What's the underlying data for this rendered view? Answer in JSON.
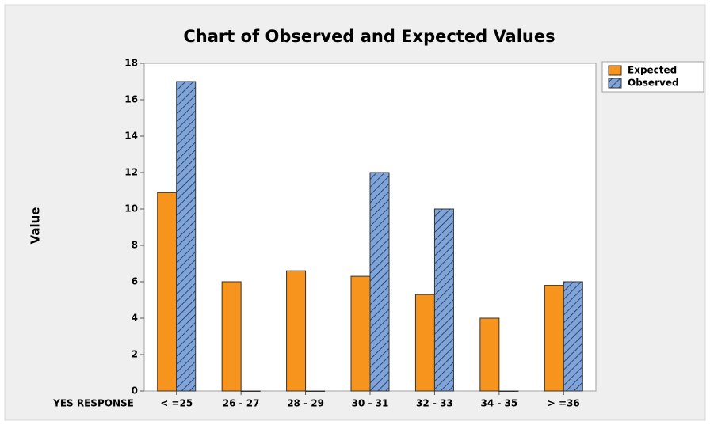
{
  "chart_data": {
    "type": "bar",
    "title": "Chart of Observed and Expected Values",
    "y_label": "Value",
    "x_label": "YES RESPONSE",
    "categories": [
      "< =25",
      "26 - 27",
      "28 - 29",
      "30 - 31",
      "32 - 33",
      "34 - 35",
      "> =36"
    ],
    "series": [
      {
        "name": "Expected",
        "color": "#f7941d",
        "values": [
          10.9,
          6.0,
          6.6,
          6.3,
          5.3,
          4.0,
          5.8
        ]
      },
      {
        "name": "Observed",
        "color": "#7fa4d9",
        "pattern": "hatch",
        "values": [
          17,
          0,
          0,
          12,
          10,
          0,
          6
        ]
      }
    ],
    "ylim": [
      0,
      18
    ],
    "yticks": [
      0,
      2,
      4,
      6,
      8,
      10,
      12,
      14,
      16,
      18
    ],
    "legend": "right"
  }
}
